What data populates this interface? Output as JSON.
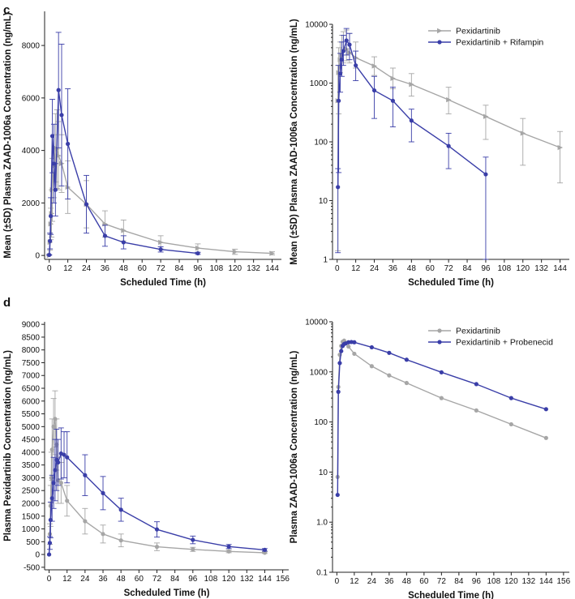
{
  "panel_labels": [
    "c",
    "d"
  ],
  "colors": {
    "gray": "#a6a6a6",
    "blue": "#3a3ea8",
    "axis": "#222222"
  },
  "chart_data": [
    {
      "id": "c-linear",
      "type": "line",
      "panel": "c",
      "xlabel": "Scheduled Time (h)",
      "ylabel": "Mean (±SD) Plasma ZAAD-1006a Concentration (ng/mL)",
      "xticks": [
        0,
        12,
        24,
        36,
        48,
        60,
        72,
        84,
        96,
        108,
        120,
        132,
        144
      ],
      "yticks": [
        0,
        2000,
        4000,
        6000,
        8000
      ],
      "xlim": [
        -3,
        150
      ],
      "ylim": [
        -150,
        9300
      ],
      "yscale": "linear",
      "legend": null,
      "series": [
        {
          "name": "Pexidartinib",
          "color": "gray",
          "marker": "triangle",
          "x": [
            0,
            0.5,
            1,
            1.5,
            2,
            3,
            4,
            5,
            6,
            8,
            12,
            24,
            36,
            48,
            72,
            96,
            120,
            144
          ],
          "y": [
            0,
            500,
            1200,
            1600,
            2500,
            3400,
            4100,
            4050,
            3800,
            3500,
            2600,
            1950,
            1200,
            950,
            500,
            280,
            140,
            80
          ],
          "err": [
            0,
            300,
            600,
            900,
            1200,
            1200,
            1300,
            1500,
            1300,
            1100,
            1000,
            900,
            500,
            400,
            250,
            160,
            100,
            60
          ]
        },
        {
          "name": "Pexidartinib + Rifampin",
          "color": "blue",
          "marker": "circle",
          "x": [
            0,
            0.5,
            1,
            2,
            3,
            4,
            6,
            8,
            12,
            24,
            36,
            48,
            72,
            96
          ],
          "y": [
            20,
            550,
            1500,
            4550,
            3500,
            2500,
            6300,
            5350,
            4250,
            1950,
            750,
            500,
            230,
            80
          ],
          "err": [
            10,
            300,
            700,
            1400,
            1500,
            1000,
            2200,
            2700,
            2100,
            1100,
            400,
            250,
            100,
            40
          ]
        }
      ]
    },
    {
      "id": "c-log",
      "type": "line",
      "panel": "c",
      "xlabel": "Scheduled Time (h)",
      "ylabel": "Mean (±SD) Plasma ZAAD-1006a Concentration (ng/mL)",
      "xticks": [
        0,
        12,
        24,
        36,
        48,
        60,
        72,
        84,
        96,
        108,
        120,
        132,
        144
      ],
      "yticks": [
        1,
        10,
        100,
        1000,
        10000
      ],
      "xlim": [
        -3,
        150
      ],
      "ylim": [
        1,
        10000
      ],
      "yscale": "log",
      "legend": "top-right",
      "series": [
        {
          "name": "Pexidartinib",
          "color": "gray",
          "marker": "triangle",
          "x": [
            0.5,
            1,
            2,
            3,
            4,
            6,
            8,
            12,
            24,
            36,
            48,
            72,
            96,
            120,
            144
          ],
          "y": [
            500,
            1500,
            2500,
            3000,
            3500,
            3800,
            3300,
            2700,
            1950,
            1200,
            950,
            520,
            270,
            140,
            80
          ],
          "lo": [
            1.4,
            300,
            1500,
            2000,
            2200,
            2400,
            2200,
            1800,
            1350,
            800,
            600,
            300,
            110,
            40,
            20
          ],
          "hi": [
            2000,
            4000,
            5000,
            6500,
            7500,
            8000,
            7000,
            5000,
            2800,
            1800,
            1450,
            850,
            420,
            250,
            150
          ]
        },
        {
          "name": "Pexidartinib + Rifampin",
          "color": "blue",
          "marker": "circle",
          "x": [
            0.5,
            1,
            2,
            3,
            4,
            6,
            8,
            12,
            24,
            36,
            48,
            72,
            96
          ],
          "y": [
            17,
            500,
            1450,
            2500,
            3500,
            5300,
            4500,
            2000,
            750,
            500,
            230,
            85,
            28
          ],
          "lo": [
            1.3,
            30,
            700,
            1300,
            2000,
            3000,
            2500,
            1100,
            250,
            180,
            100,
            35,
            1
          ],
          "hi": [
            35,
            2000,
            3200,
            5000,
            6500,
            8500,
            7000,
            3500,
            1300,
            850,
            360,
            140,
            55
          ]
        }
      ]
    },
    {
      "id": "d-linear",
      "type": "line",
      "panel": "d",
      "xlabel": "Scheduled Time (h)",
      "ylabel": "Plasma Pexidartinib Concentration (ng/mL)",
      "xticks": [
        0,
        12,
        24,
        36,
        48,
        60,
        72,
        84,
        96,
        108,
        120,
        132,
        144,
        156
      ],
      "yticks": [
        -500,
        0,
        500,
        1000,
        1500,
        2000,
        2500,
        3000,
        3500,
        4000,
        4500,
        5000,
        5500,
        6000,
        6500,
        7000,
        7500,
        8000,
        8500,
        9000
      ],
      "xlim": [
        -3,
        160
      ],
      "ylim": [
        -600,
        9100
      ],
      "yscale": "linear",
      "legend": null,
      "series": [
        {
          "name": "Pexidartinib",
          "color": "gray",
          "marker": "circle",
          "x": [
            0,
            0.5,
            1,
            1.5,
            2,
            3,
            4,
            5,
            6,
            8,
            12,
            24,
            36,
            48,
            72,
            96,
            120,
            144
          ],
          "y": [
            0,
            800,
            1900,
            3000,
            4100,
            5000,
            5300,
            4300,
            2900,
            2800,
            2100,
            1300,
            800,
            550,
            300,
            200,
            120,
            70
          ],
          "err": [
            0,
            400,
            800,
            1000,
            1200,
            1100,
            1100,
            1000,
            900,
            800,
            600,
            500,
            350,
            250,
            150,
            80,
            50,
            30
          ]
        },
        {
          "name": "Pexidartinib + Probenecid",
          "color": "blue",
          "marker": "circle",
          "x": [
            0,
            0.5,
            1,
            2,
            3,
            4,
            5,
            6,
            8,
            10,
            12,
            24,
            36,
            48,
            72,
            96,
            120,
            144
          ],
          "y": [
            0,
            450,
            1350,
            2200,
            2800,
            3300,
            3700,
            3600,
            3950,
            3900,
            3800,
            3100,
            2400,
            1750,
            980,
            570,
            310,
            180
          ],
          "err": [
            0,
            250,
            700,
            900,
            1000,
            1200,
            1200,
            900,
            1000,
            900,
            1000,
            800,
            650,
            450,
            300,
            150,
            80,
            50
          ]
        }
      ]
    },
    {
      "id": "d-log",
      "type": "line",
      "panel": "d",
      "xlabel": "Scheduled Time (h)",
      "ylabel": "Plasma ZAAD-1006a Concentration (ng/mL)",
      "xticks": [
        0,
        12,
        24,
        36,
        48,
        60,
        72,
        84,
        96,
        108,
        120,
        132,
        144,
        156
      ],
      "yticks": [
        0.1,
        1.0,
        10,
        100,
        1000,
        10000
      ],
      "ytick_labels": [
        "0.1",
        "1.0",
        "10",
        "100",
        "1000",
        "10000"
      ],
      "xlim": [
        -3,
        160
      ],
      "ylim": [
        0.1,
        10000
      ],
      "yscale": "log",
      "legend": "top-right",
      "series": [
        {
          "name": "Pexidartinib",
          "color": "gray",
          "marker": "circle",
          "x": [
            0.5,
            1,
            2,
            3,
            4,
            5,
            6,
            8,
            12,
            24,
            36,
            48,
            72,
            96,
            120,
            144
          ],
          "y": [
            8,
            500,
            2200,
            3300,
            4000,
            4200,
            3800,
            3200,
            2300,
            1300,
            850,
            600,
            300,
            170,
            90,
            48
          ]
        },
        {
          "name": "Pexidartinib + Probenecid",
          "color": "blue",
          "marker": "circle",
          "x": [
            0.5,
            1,
            2,
            3,
            4,
            5,
            6,
            8,
            10,
            12,
            24,
            36,
            48,
            72,
            96,
            120,
            144
          ],
          "y": [
            3.5,
            400,
            1500,
            2600,
            3300,
            3600,
            3700,
            3900,
            3950,
            3900,
            3100,
            2400,
            1750,
            980,
            570,
            300,
            180
          ]
        }
      ]
    }
  ]
}
